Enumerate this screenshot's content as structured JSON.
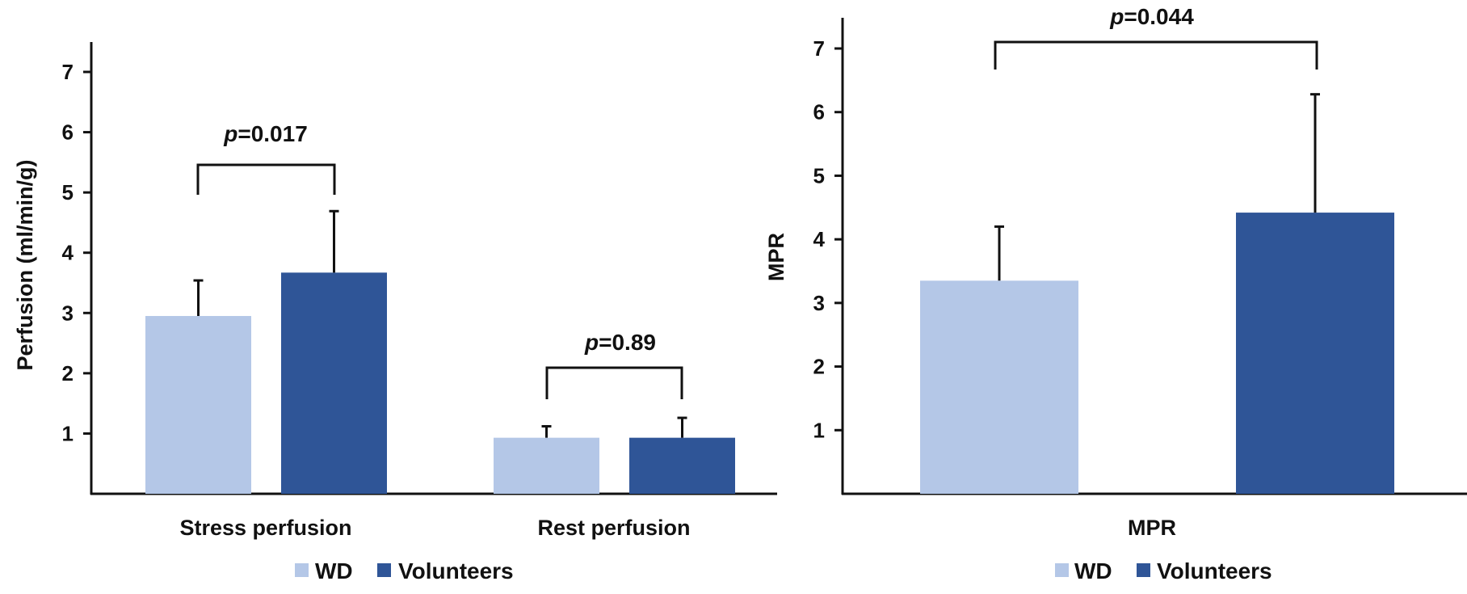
{
  "colors": {
    "WD": "#b4c7e7",
    "Volunteers": "#2f5597",
    "axis": "#111111"
  },
  "chart_data": [
    {
      "type": "bar",
      "categories": [
        "Stress perfusion",
        "Rest perfusion"
      ],
      "ylabel": "Perfusion (ml/min/g)",
      "ylim": [
        0,
        7.5
      ],
      "yticks": [
        1,
        2,
        3,
        4,
        5,
        6,
        7
      ],
      "grid": false,
      "legend_position": "bottom",
      "series": [
        {
          "name": "WD",
          "values": [
            2.95,
            0.93
          ],
          "errors": [
            0.59,
            0.19
          ]
        },
        {
          "name": "Volunteers",
          "values": [
            3.67,
            0.93
          ],
          "errors": [
            1.02,
            0.33
          ]
        }
      ],
      "annotations": [
        {
          "italic": "p",
          "text": "=0.017",
          "category": 0
        },
        {
          "italic": "p",
          "text": "=0.89",
          "category": 1
        }
      ]
    },
    {
      "type": "bar",
      "categories": [
        "MPR"
      ],
      "ylabel": "MPR",
      "ylim": [
        0,
        7.5
      ],
      "yticks": [
        1,
        2,
        3,
        4,
        5,
        6,
        7
      ],
      "grid": false,
      "legend_position": "bottom",
      "series": [
        {
          "name": "WD",
          "values": [
            3.35
          ],
          "errors": [
            0.85
          ]
        },
        {
          "name": "Volunteers",
          "values": [
            4.42
          ],
          "errors": [
            1.86
          ]
        }
      ],
      "annotations": [
        {
          "italic": "p",
          "text": "=0.044",
          "category": 0
        }
      ]
    }
  ]
}
